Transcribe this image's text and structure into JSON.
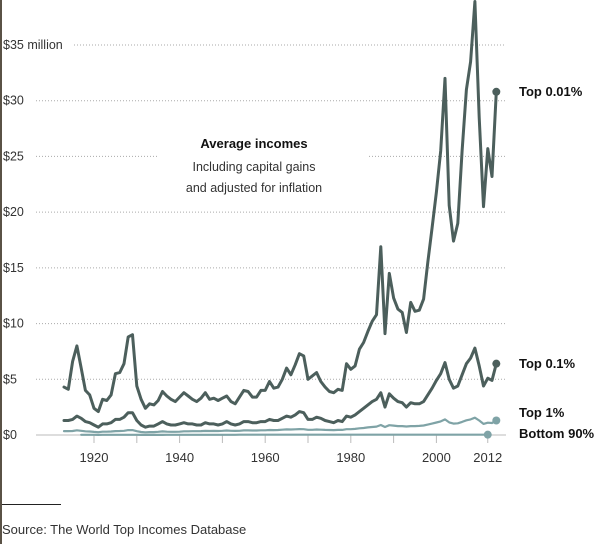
{
  "chart_data": {
    "type": "line",
    "title": "Average incomes",
    "subtitle_lines": [
      "Including capital gains",
      "and adjusted for inflation"
    ],
    "xlabel": "",
    "ylabel": "",
    "ylim": [
      0,
      35
    ],
    "xlim": [
      1913,
      2012
    ],
    "y_ticks": [
      {
        "value": 0,
        "label": "$0"
      },
      {
        "value": 5,
        "label": "$5"
      },
      {
        "value": 10,
        "label": "$10"
      },
      {
        "value": 15,
        "label": "$15"
      },
      {
        "value": 20,
        "label": "$20"
      },
      {
        "value": 25,
        "label": "$25"
      },
      {
        "value": 30,
        "label": "$30"
      },
      {
        "value": 35,
        "label": "$35 million"
      }
    ],
    "x_ticks": [
      {
        "value": 1920,
        "label": "1920"
      },
      {
        "value": 1940,
        "label": "1940"
      },
      {
        "value": 1960,
        "label": "1960"
      },
      {
        "value": 1980,
        "label": "1980"
      },
      {
        "value": 2000,
        "label": "2000"
      },
      {
        "value": 2012,
        "label": "2012"
      }
    ],
    "x_minor_ticks": [
      1930,
      1950,
      1970,
      1990
    ],
    "grid": true,
    "series": [
      {
        "name": "Top 0.01%",
        "color": "#4c5f5c",
        "start_year": 1913,
        "values": [
          4.3,
          4.1,
          6.6,
          8.0,
          6.0,
          4.0,
          3.6,
          2.4,
          2.1,
          3.2,
          3.1,
          3.6,
          5.5,
          5.6,
          6.4,
          8.8,
          9.0,
          4.4,
          3.2,
          2.4,
          2.8,
          2.7,
          3.1,
          3.9,
          3.5,
          3.2,
          3.0,
          3.4,
          3.8,
          3.5,
          3.2,
          3.0,
          3.3,
          3.8,
          3.2,
          3.3,
          3.1,
          3.3,
          3.5,
          3.0,
          2.8,
          3.4,
          4.0,
          3.9,
          3.4,
          3.4,
          4.0,
          4.0,
          4.8,
          4.2,
          4.3,
          5.0,
          6.0,
          5.4,
          6.3,
          7.3,
          7.1,
          5.0,
          5.3,
          5.6,
          4.8,
          4.3,
          3.9,
          3.8,
          4.1,
          4.0,
          6.4,
          5.9,
          6.2,
          7.7,
          8.3,
          9.3,
          10.2,
          10.8,
          16.9,
          9.1,
          14.5,
          12.3,
          11.3,
          11.0,
          9.2,
          11.9,
          11.1,
          11.2,
          12.2,
          15.5,
          18.6,
          21.8,
          25.5,
          32.0,
          20.6,
          17.4,
          19.0,
          25.5,
          31.0,
          33.5,
          38.9,
          28.5,
          20.5,
          25.7,
          23.2,
          30.8
        ],
        "label": "Top 0.01%"
      },
      {
        "name": "Top 0.1%",
        "color": "#4c5f5c",
        "start_year": 1913,
        "values": [
          1.3,
          1.3,
          1.4,
          1.7,
          1.5,
          1.2,
          1.1,
          0.9,
          0.7,
          1.0,
          1.0,
          1.1,
          1.4,
          1.4,
          1.6,
          2.0,
          2.0,
          1.3,
          0.9,
          0.7,
          0.8,
          0.8,
          1.0,
          1.2,
          1.0,
          0.9,
          0.9,
          1.0,
          1.1,
          1.0,
          1.0,
          0.9,
          0.9,
          1.1,
          1.0,
          1.0,
          0.9,
          1.0,
          1.2,
          1.0,
          0.9,
          1.0,
          1.2,
          1.2,
          1.1,
          1.1,
          1.2,
          1.2,
          1.4,
          1.3,
          1.3,
          1.5,
          1.7,
          1.6,
          1.8,
          2.1,
          2.0,
          1.4,
          1.4,
          1.6,
          1.5,
          1.3,
          1.2,
          1.1,
          1.3,
          1.2,
          1.7,
          1.6,
          1.8,
          2.1,
          2.4,
          2.7,
          3.0,
          3.2,
          3.8,
          2.5,
          3.7,
          3.3,
          3.0,
          2.9,
          2.5,
          2.9,
          2.8,
          2.8,
          3.0,
          3.6,
          4.2,
          4.9,
          5.5,
          6.5,
          5.0,
          4.2,
          4.4,
          5.4,
          6.4,
          6.9,
          7.8,
          6.2,
          4.4,
          5.1,
          4.9,
          6.4
        ],
        "label": "Top 0.1%"
      },
      {
        "name": "Top 1%",
        "color": "#7fa3a6",
        "start_year": 1913,
        "values": [
          0.35,
          0.35,
          0.36,
          0.42,
          0.38,
          0.33,
          0.31,
          0.28,
          0.25,
          0.3,
          0.3,
          0.31,
          0.35,
          0.36,
          0.38,
          0.44,
          0.44,
          0.34,
          0.27,
          0.24,
          0.26,
          0.26,
          0.29,
          0.32,
          0.3,
          0.29,
          0.29,
          0.3,
          0.33,
          0.33,
          0.34,
          0.34,
          0.35,
          0.37,
          0.36,
          0.37,
          0.36,
          0.38,
          0.4,
          0.38,
          0.37,
          0.38,
          0.41,
          0.41,
          0.4,
          0.4,
          0.42,
          0.42,
          0.45,
          0.44,
          0.45,
          0.48,
          0.5,
          0.49,
          0.51,
          0.53,
          0.52,
          0.47,
          0.47,
          0.49,
          0.48,
          0.46,
          0.45,
          0.44,
          0.46,
          0.46,
          0.52,
          0.52,
          0.55,
          0.6,
          0.63,
          0.68,
          0.72,
          0.75,
          0.9,
          0.72,
          0.88,
          0.84,
          0.8,
          0.8,
          0.76,
          0.8,
          0.8,
          0.82,
          0.85,
          0.93,
          1.02,
          1.12,
          1.22,
          1.4,
          1.13,
          1.02,
          1.05,
          1.18,
          1.32,
          1.4,
          1.55,
          1.3,
          1.0,
          1.1,
          1.08,
          1.3
        ],
        "label": "Top 1%"
      },
      {
        "name": "Bottom 90%",
        "color": "#7fa3a6",
        "start_year": 1917,
        "values": [
          0.02,
          0.02,
          0.02,
          0.02,
          0.01,
          0.02,
          0.02,
          0.02,
          0.02,
          0.02,
          0.02,
          0.02,
          0.02,
          0.02,
          0.01,
          0.01,
          0.01,
          0.01,
          0.01,
          0.01,
          0.02,
          0.02,
          0.02,
          0.02,
          0.02,
          0.02,
          0.02,
          0.02,
          0.02,
          0.02,
          0.02,
          0.02,
          0.02,
          0.02,
          0.02,
          0.02,
          0.02,
          0.03,
          0.03,
          0.03,
          0.03,
          0.03,
          0.03,
          0.03,
          0.03,
          0.03,
          0.03,
          0.03,
          0.03,
          0.03,
          0.03,
          0.03,
          0.03,
          0.03,
          0.03,
          0.03,
          0.03,
          0.03,
          0.03,
          0.03,
          0.03,
          0.03,
          0.03,
          0.03,
          0.03,
          0.03,
          0.03,
          0.03,
          0.03,
          0.03,
          0.03,
          0.03,
          0.03,
          0.03,
          0.03,
          0.03,
          0.03,
          0.03,
          0.03,
          0.03,
          0.03,
          0.03,
          0.03,
          0.03,
          0.03,
          0.03,
          0.03,
          0.03,
          0.03,
          0.03,
          0.03,
          0.03,
          0.03,
          0.03,
          0.03,
          0.03
        ],
        "label": "Bottom 90%"
      }
    ],
    "legend": "direct-labels-right"
  },
  "source": "Source: The World Top Incomes Database"
}
